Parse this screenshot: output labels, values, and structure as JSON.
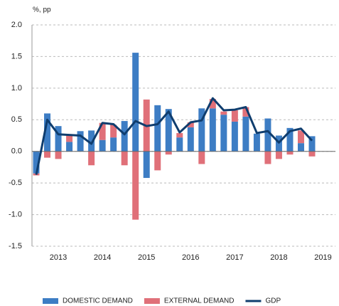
{
  "chart_data": {
    "type": "stacked_bar_line",
    "y_label": "%, pp",
    "categories": [
      null,
      null,
      "2013",
      null,
      null,
      null,
      "2014",
      null,
      null,
      null,
      "2015",
      null,
      null,
      null,
      "2016",
      null,
      null,
      null,
      "2017",
      null,
      null,
      null,
      "2018",
      null,
      null,
      null,
      "2019"
    ],
    "series": [
      {
        "name": "DOMESTIC DEMAND",
        "color": "#3d7dc4",
        "kind": "bar",
        "values": [
          -0.35,
          0.6,
          0.4,
          0.15,
          0.32,
          0.33,
          0.18,
          0.22,
          0.48,
          1.56,
          -0.42,
          0.73,
          0.67,
          0.22,
          0.38,
          0.68,
          0.68,
          0.58,
          0.47,
          0.55,
          0.28,
          0.52,
          0.25,
          0.37,
          0.13,
          0.24,
          null
        ]
      },
      {
        "name": "EXTERNAL DEMAND",
        "color": "#e07079",
        "kind": "bar",
        "values": [
          -0.03,
          -0.1,
          -0.12,
          0.1,
          0,
          -0.22,
          0.27,
          0.2,
          -0.22,
          -1.08,
          0.82,
          -0.3,
          -0.05,
          0.07,
          0.08,
          -0.2,
          0.15,
          0.05,
          0.18,
          0.15,
          0,
          -0.2,
          -0.12,
          -0.05,
          0.2,
          -0.08,
          null
        ]
      },
      {
        "name": "GDP",
        "color": "#0f3d6e",
        "kind": "line",
        "values": [
          -0.37,
          0.5,
          0.27,
          0.26,
          0.25,
          0.12,
          0.45,
          0.43,
          0.27,
          0.48,
          0.4,
          0.43,
          0.63,
          0.3,
          0.46,
          0.49,
          0.84,
          0.65,
          0.66,
          0.7,
          0.29,
          0.32,
          0.14,
          0.32,
          0.36,
          0.17,
          null
        ]
      }
    ],
    "ylim": [
      -1.5,
      2.0
    ],
    "yticks": [
      {
        "value": -1.5,
        "label": "-1.5"
      },
      {
        "value": -1,
        "label": "-1.0"
      },
      {
        "value": -0.5,
        "label": "-0.5"
      },
      {
        "value": 0,
        "label": "0.0"
      },
      {
        "value": 0.5,
        "label": "0.5"
      },
      {
        "value": 1,
        "label": "1.0"
      },
      {
        "value": 1.5,
        "label": "1.5"
      },
      {
        "value": 2,
        "label": "2.0"
      }
    ],
    "grid": true,
    "legend": "bottom"
  }
}
